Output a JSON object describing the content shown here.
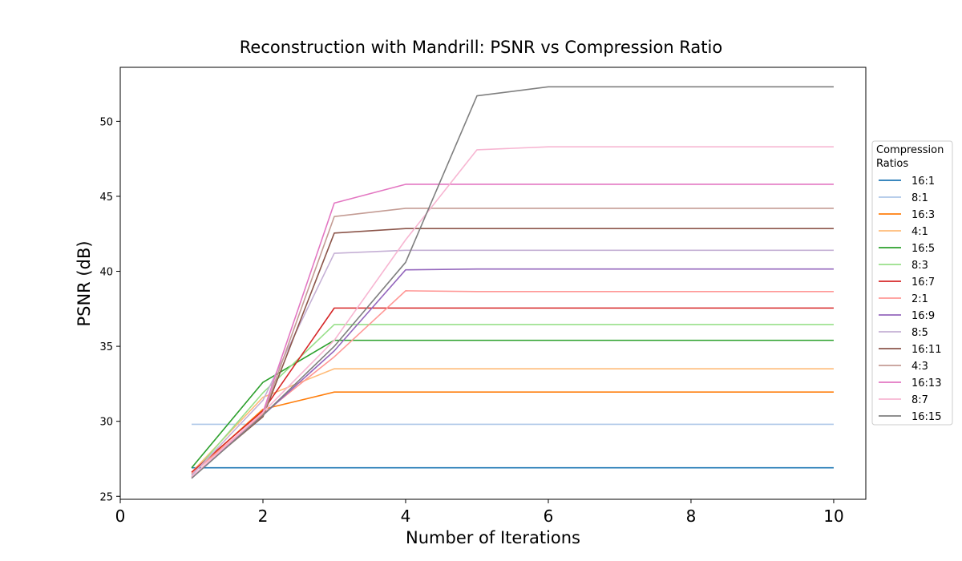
{
  "chart_data": {
    "type": "line",
    "title": "Reconstruction with Mandrill: PSNR vs Compression Ratio",
    "xlabel": "Number of Iterations",
    "ylabel": "PSNR (dB)",
    "xlim": [
      0,
      10.45
    ],
    "ylim": [
      24.8,
      53.6
    ],
    "xticks": [
      0,
      2,
      4,
      6,
      8,
      10
    ],
    "yticks": [
      25,
      30,
      35,
      40,
      45,
      50
    ],
    "grid": false,
    "legend": {
      "title": "Compression\n Ratios",
      "placement": "right, outside plot area"
    },
    "x": [
      1,
      2,
      3,
      4,
      5,
      6,
      7,
      8,
      9,
      10
    ],
    "series": [
      {
        "name": "16:1",
        "color": "#1f77b4",
        "values": [
          26.9,
          26.9,
          26.9,
          26.9,
          26.9,
          26.9,
          26.9,
          26.9,
          26.9,
          26.9
        ]
      },
      {
        "name": "8:1",
        "color": "#aec7e8",
        "values": [
          29.8,
          29.8,
          29.8,
          29.8,
          29.8,
          29.8,
          29.8,
          29.8,
          29.8,
          29.8
        ]
      },
      {
        "name": "16:3",
        "color": "#ff7f0e",
        "values": [
          26.5,
          30.8,
          31.95,
          31.95,
          31.95,
          31.95,
          31.95,
          31.95,
          31.95,
          31.95
        ]
      },
      {
        "name": "4:1",
        "color": "#ffbb78",
        "values": [
          26.6,
          31.6,
          33.5,
          33.5,
          33.5,
          33.5,
          33.5,
          33.5,
          33.5,
          33.5
        ]
      },
      {
        "name": "16:5",
        "color": "#2ca02c",
        "values": [
          26.9,
          32.6,
          35.4,
          35.4,
          35.4,
          35.4,
          35.4,
          35.4,
          35.4,
          35.4
        ]
      },
      {
        "name": "8:3",
        "color": "#98df8a",
        "values": [
          26.4,
          31.9,
          36.45,
          36.45,
          36.45,
          36.45,
          36.45,
          36.45,
          36.45,
          36.45
        ]
      },
      {
        "name": "16:7",
        "color": "#d62728",
        "values": [
          26.6,
          30.7,
          37.55,
          37.55,
          37.55,
          37.55,
          37.55,
          37.55,
          37.55,
          37.55
        ]
      },
      {
        "name": "2:1",
        "color": "#ff9896",
        "values": [
          26.5,
          30.5,
          34.3,
          38.7,
          38.65,
          38.65,
          38.65,
          38.65,
          38.65,
          38.65
        ]
      },
      {
        "name": "16:9",
        "color": "#9467bd",
        "values": [
          26.3,
          30.4,
          34.7,
          40.1,
          40.15,
          40.15,
          40.15,
          40.15,
          40.15,
          40.15
        ]
      },
      {
        "name": "8:5",
        "color": "#c5b0d5",
        "values": [
          26.4,
          31.4,
          41.2,
          41.4,
          41.4,
          41.4,
          41.4,
          41.4,
          41.4,
          41.4
        ]
      },
      {
        "name": "16:11",
        "color": "#8c564b",
        "values": [
          26.3,
          30.3,
          42.55,
          42.85,
          42.85,
          42.85,
          42.85,
          42.85,
          42.85,
          42.85
        ]
      },
      {
        "name": "4:3",
        "color": "#c49c94",
        "values": [
          26.3,
          30.4,
          43.65,
          44.2,
          44.2,
          44.2,
          44.2,
          44.2,
          44.2,
          44.2
        ]
      },
      {
        "name": "16:13",
        "color": "#e377c2",
        "values": [
          26.2,
          30.6,
          44.55,
          45.8,
          45.8,
          45.8,
          45.8,
          45.8,
          45.8,
          45.8
        ]
      },
      {
        "name": "8:7",
        "color": "#f7b6d2",
        "values": [
          26.3,
          30.6,
          35.4,
          42.1,
          48.1,
          48.3,
          48.3,
          48.3,
          48.3,
          48.3
        ]
      },
      {
        "name": "16:15",
        "color": "#7f7f7f",
        "values": [
          26.2,
          30.4,
          35.0,
          40.6,
          51.7,
          52.3,
          52.3,
          52.3,
          52.3,
          52.3
        ]
      }
    ]
  }
}
